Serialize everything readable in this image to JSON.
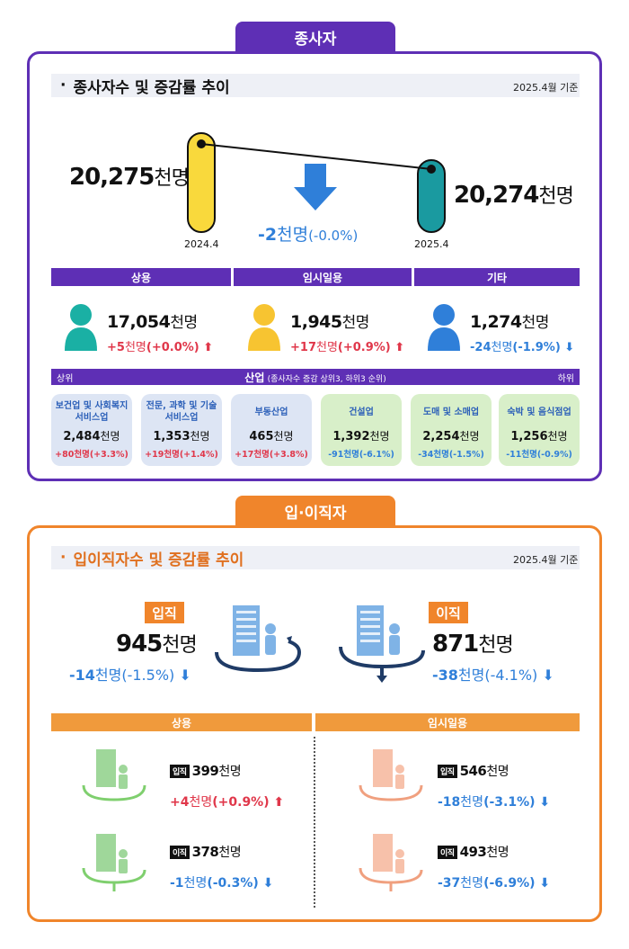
{
  "employees": {
    "tab": "종사자",
    "title": "종사자수 및 증감률 추이",
    "base_date": "2025.4월 기준",
    "prev": {
      "value": "20,275",
      "unit": "천명",
      "label": "2024.4"
    },
    "curr": {
      "value": "20,274",
      "unit": "천명",
      "label": "2025.4"
    },
    "change": {
      "value": "-2",
      "unit": "천명",
      "pct": "(-0.0%)"
    },
    "categories": [
      {
        "name": "상용",
        "value": "17,054",
        "unit": "천명",
        "chg": "+5",
        "chg_unit": "천명",
        "pct": "(+0.0%)",
        "color": "#1ab0a4"
      },
      {
        "name": "임시일용",
        "value": "1,945",
        "unit": "천명",
        "chg": "+17",
        "chg_unit": "천명",
        "pct": "(+0.9%)",
        "color": "#f7c431"
      },
      {
        "name": "기타",
        "value": "1,274",
        "unit": "천명",
        "chg": "-24",
        "chg_unit": "천명",
        "pct": "(-1.9%)",
        "color": "#2f7fd9"
      }
    ],
    "industry": {
      "label": "산업",
      "note": "(종사자수 증감 상위3, 하위3 순위)",
      "left": "상위",
      "right": "하위",
      "items": [
        {
          "name": "보건업 및 사회복지 서비스업",
          "value": "2,484",
          "unit": "천명",
          "chg": "+80천명(+3.3%)"
        },
        {
          "name": "전문, 과학 및 기술 서비스업",
          "value": "1,353",
          "unit": "천명",
          "chg": "+19천명(+1.4%)"
        },
        {
          "name": "부동산업",
          "value": "465",
          "unit": "천명",
          "chg": "+17천명(+3.8%)"
        },
        {
          "name": "건설업",
          "value": "1,392",
          "unit": "천명",
          "chg": "-91천명(-6.1%)"
        },
        {
          "name": "도매 및 소매업",
          "value": "2,254",
          "unit": "천명",
          "chg": "-34천명(-1.5%)"
        },
        {
          "name": "숙박 및 음식점업",
          "value": "1,256",
          "unit": "천명",
          "chg": "-11천명(-0.9%)"
        }
      ]
    }
  },
  "turnover": {
    "tab": "입·이직자",
    "title": "입이직자수 및 증감률 추이",
    "base_date": "2025.4월 기준",
    "hire": {
      "badge": "입직",
      "value": "945",
      "unit": "천명",
      "chg": "-14",
      "chg_unit": "천명",
      "pct": "(-1.5%)"
    },
    "sep": {
      "badge": "이직",
      "value": "871",
      "unit": "천명",
      "chg": "-38",
      "chg_unit": "천명",
      "pct": "(-4.1%)"
    },
    "regular": {
      "name": "상용",
      "hire": {
        "badge": "입직",
        "value": "399",
        "unit": "천명",
        "chg": "+4",
        "chg_unit": "천명",
        "pct": "(+0.9%)"
      },
      "sep": {
        "badge": "이직",
        "value": "378",
        "unit": "천명",
        "chg": "-1",
        "chg_unit": "천명",
        "pct": "(-0.3%)"
      }
    },
    "temp": {
      "name": "임시일용",
      "hire": {
        "badge": "입직",
        "value": "546",
        "unit": "천명",
        "chg": "-18",
        "chg_unit": "천명",
        "pct": "(-3.1%)"
      },
      "sep": {
        "badge": "이직",
        "value": "493",
        "unit": "천명",
        "chg": "-37",
        "chg_unit": "천명",
        "pct": "(-6.9%)"
      }
    }
  }
}
